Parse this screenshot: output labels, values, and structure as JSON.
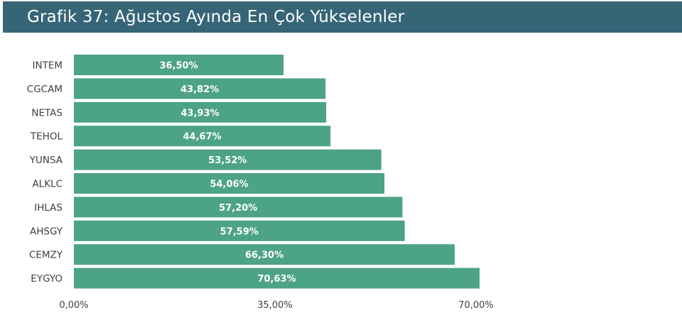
{
  "header": {
    "title": "Grafik 37: Ağustos Ayında En Çok Yükselenler"
  },
  "colors": {
    "header_bg": "#366577",
    "bar": "#4da385"
  },
  "chart_data": {
    "type": "bar",
    "orientation": "horizontal",
    "title": "Grafik 37: Ağustos Ayında En Çok Yükselenler",
    "categories": [
      "INTEM",
      "CGCAM",
      "NETAS",
      "TEHOL",
      "YUNSA",
      "ALKLC",
      "IHLAS",
      "AHSGY",
      "CEMZY",
      "EYGYO"
    ],
    "values": [
      36.5,
      43.82,
      43.93,
      44.67,
      53.52,
      54.06,
      57.2,
      57.59,
      66.3,
      70.63
    ],
    "value_labels": [
      "36,50%",
      "43,82%",
      "43,93%",
      "44,67%",
      "53,52%",
      "54,06%",
      "57,20%",
      "57,59%",
      "66,30%",
      "70,63%"
    ],
    "xlim": [
      0,
      70
    ],
    "x_ticks": [
      0,
      35,
      70
    ],
    "x_tick_labels": [
      "0,00%",
      "35,00%",
      "70,00%"
    ],
    "grid": false,
    "legend": "none",
    "xlabel": "",
    "ylabel": ""
  }
}
